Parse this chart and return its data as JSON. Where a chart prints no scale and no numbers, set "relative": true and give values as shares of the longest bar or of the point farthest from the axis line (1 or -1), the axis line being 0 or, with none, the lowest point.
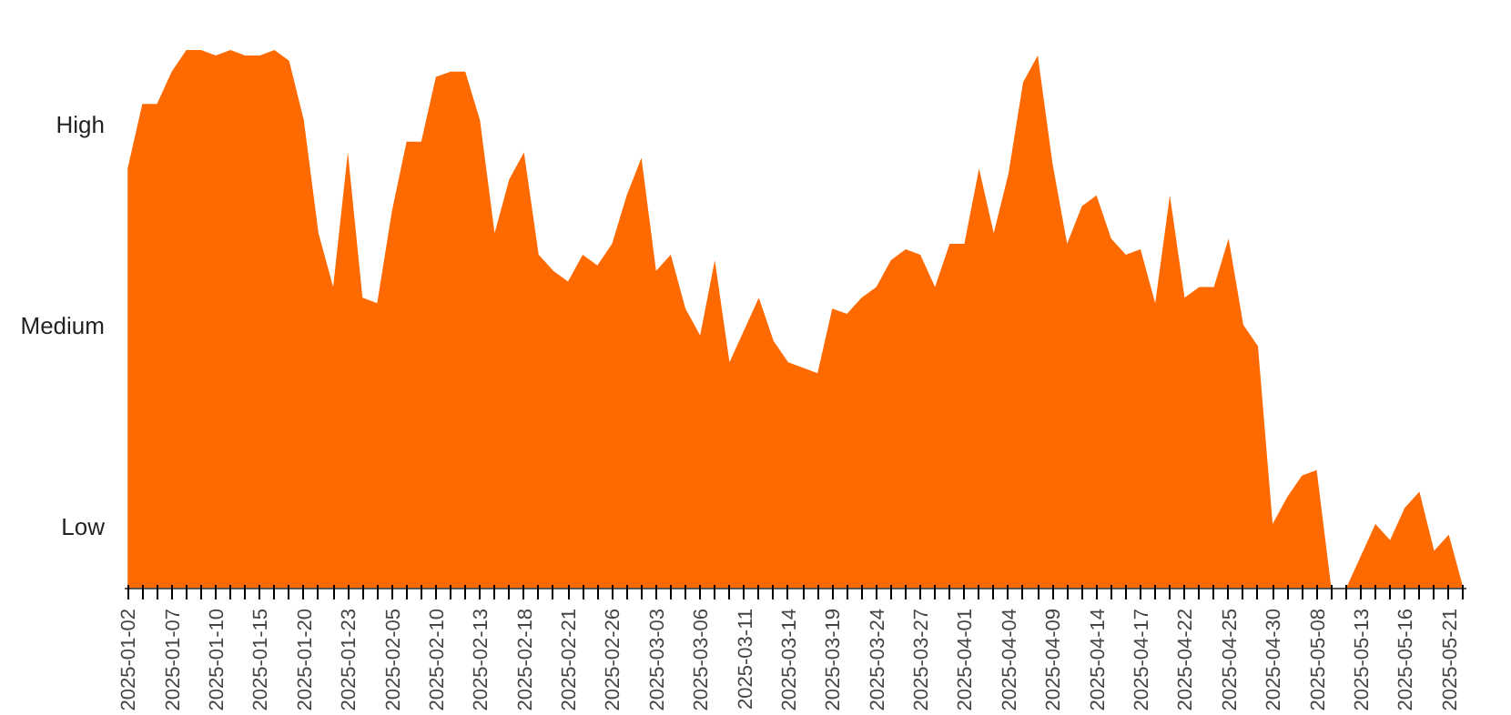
{
  "chart_data": {
    "type": "area",
    "categories": [
      "2025-01-02",
      null,
      null,
      "2025-01-07",
      null,
      null,
      "2025-01-10",
      null,
      null,
      "2025-01-15",
      null,
      null,
      "2025-01-20",
      null,
      null,
      "2025-01-23",
      null,
      null,
      "2025-02-05",
      null,
      null,
      "2025-02-10",
      null,
      null,
      "2025-02-13",
      null,
      null,
      "2025-02-18",
      null,
      null,
      "2025-02-21",
      null,
      null,
      "2025-02-26",
      null,
      null,
      "2025-03-03",
      null,
      null,
      "2025-03-06",
      null,
      null,
      "2025-03-11",
      null,
      null,
      "2025-03-14",
      null,
      null,
      "2025-03-19",
      null,
      null,
      "2025-03-24",
      null,
      null,
      "2025-03-27",
      null,
      null,
      "2025-04-01",
      null,
      null,
      "2025-04-04",
      null,
      null,
      "2025-04-09",
      null,
      null,
      "2025-04-14",
      null,
      null,
      "2025-04-17",
      null,
      null,
      "2025-04-22",
      null,
      null,
      "2025-04-25",
      null,
      null,
      "2025-04-30",
      null,
      null,
      "2025-05-08",
      null,
      null,
      "2025-05-13",
      null,
      null,
      "2025-05-16",
      null,
      null,
      "2025-05-21",
      null
    ],
    "series": [
      {
        "color": "#ff6a00",
        "values": [
          0.78,
          0.9,
          0.9,
          0.96,
          1.0,
          1.0,
          0.99,
          1.0,
          0.99,
          0.99,
          1.0,
          0.98,
          0.87,
          0.66,
          0.56,
          0.81,
          0.54,
          0.53,
          0.7,
          0.83,
          0.83,
          0.95,
          0.96,
          0.96,
          0.87,
          0.66,
          0.76,
          0.81,
          0.62,
          0.59,
          0.57,
          0.62,
          0.6,
          0.64,
          0.73,
          0.8,
          0.59,
          0.62,
          0.52,
          0.47,
          0.61,
          0.42,
          0.48,
          0.54,
          0.46,
          0.42,
          0.41,
          0.4,
          0.52,
          0.51,
          0.54,
          0.56,
          0.61,
          0.63,
          0.62,
          0.56,
          0.64,
          0.64,
          0.78,
          0.66,
          0.77,
          0.94,
          0.99,
          0.79,
          0.64,
          0.71,
          0.73,
          0.65,
          0.62,
          0.63,
          0.53,
          0.73,
          0.54,
          0.56,
          0.56,
          0.65,
          0.49,
          0.45,
          0.12,
          0.17,
          0.21,
          0.22,
          0,
          0,
          0.06,
          0.12,
          0.09,
          0.15,
          0.18,
          0.07,
          0.1,
          0
        ]
      }
    ],
    "relative": true,
    "annotations": [
      "Low",
      "Medium",
      "High"
    ]
  }
}
